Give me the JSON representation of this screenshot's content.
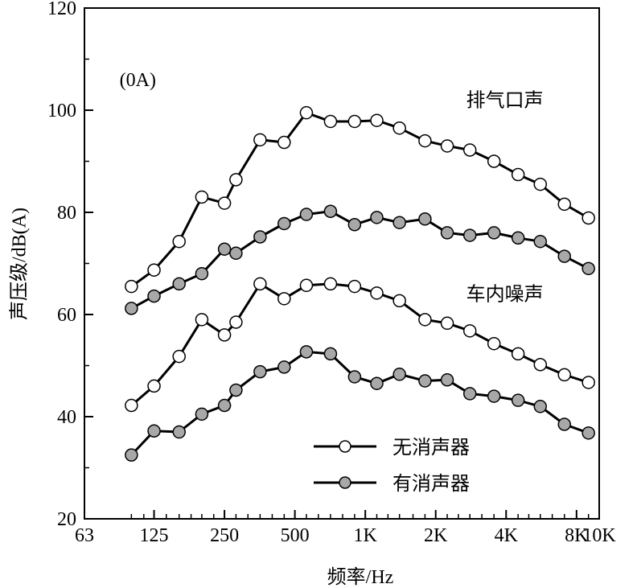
{
  "chart_data": {
    "type": "line",
    "xlabel": "频率/Hz",
    "ylabel": "声压级/dB(A)",
    "x_scale": "log",
    "xlim": [
      63,
      10000
    ],
    "ylim": [
      20,
      120
    ],
    "x_ticks": [
      {
        "label": "63",
        "value": 63
      },
      {
        "label": "125",
        "value": 125
      },
      {
        "label": "250",
        "value": 250
      },
      {
        "label": "500",
        "value": 500
      },
      {
        "label": "1K",
        "value": 1000
      },
      {
        "label": "2K",
        "value": 2000
      },
      {
        "label": "4K",
        "value": 4000
      },
      {
        "label": "8K",
        "value": 8000
      },
      {
        "label": "10K",
        "value": 10000
      }
    ],
    "y_ticks": [
      {
        "label": "20",
        "value": 20
      },
      {
        "label": "40",
        "value": 40
      },
      {
        "label": "60",
        "value": 60
      },
      {
        "label": "80",
        "value": 80
      },
      {
        "label": "100",
        "value": 100
      },
      {
        "label": "120",
        "value": 120
      }
    ],
    "x": [
      100,
      113,
      125,
      141,
      160,
      180,
      200,
      225,
      250,
      280,
      315,
      355,
      400,
      450,
      500,
      560,
      630,
      710,
      800,
      900,
      1000,
      1120,
      1250,
      1400,
      1600,
      1800,
      2000,
      2240,
      2500,
      2800,
      3150,
      3550,
      4000,
      4500,
      5000,
      5600,
      6300,
      7100,
      8000,
      9000,
      10000
    ],
    "annotations": [
      {
        "text": "(0A)",
        "x": 89,
        "y": 106
      },
      {
        "text": "排气口声",
        "x": 2700,
        "y": 102
      },
      {
        "text": "车内噪声",
        "x": 2700,
        "y": 64
      }
    ],
    "legend": {
      "placement": "bottom-right",
      "entries": [
        {
          "label": "无消声器",
          "marker": "open-circle"
        },
        {
          "label": "有消声器",
          "marker": "gray-circle"
        }
      ]
    },
    "colors": {
      "open_fill": "#ffffff",
      "filled_fill": "#a8a8a8",
      "line": "#000000"
    },
    "series": [
      {
        "group": "排气口声",
        "legend": "无消声器",
        "points": [
          [
            100,
            65.5
          ],
          [
            125,
            68.7
          ],
          [
            160,
            74.3
          ],
          [
            200,
            83
          ],
          [
            250,
            81.8
          ],
          [
            280,
            86.4
          ],
          [
            355,
            94.2
          ],
          [
            450,
            93.7
          ],
          [
            560,
            99.5
          ],
          [
            710,
            97.8
          ],
          [
            900,
            97.8
          ],
          [
            1120,
            98
          ],
          [
            1400,
            96.5
          ],
          [
            1800,
            94
          ],
          [
            2240,
            93
          ],
          [
            2800,
            92.2
          ],
          [
            3550,
            90
          ],
          [
            4500,
            87.4
          ],
          [
            5600,
            85.5
          ],
          [
            7100,
            81.6
          ],
          [
            9000,
            78.9
          ]
        ]
      },
      {
        "group": "排气口声",
        "legend": "有消声器",
        "points": [
          [
            100,
            61.2
          ],
          [
            125,
            63.6
          ],
          [
            160,
            66
          ],
          [
            200,
            68
          ],
          [
            250,
            72.8
          ],
          [
            280,
            72
          ],
          [
            355,
            75.2
          ],
          [
            450,
            77.8
          ],
          [
            560,
            79.6
          ],
          [
            710,
            80.2
          ],
          [
            900,
            77.6
          ],
          [
            1120,
            79
          ],
          [
            1400,
            78
          ],
          [
            1800,
            78.7
          ],
          [
            2240,
            76
          ],
          [
            2800,
            75.5
          ],
          [
            3550,
            76
          ],
          [
            4500,
            75
          ],
          [
            5600,
            74.3
          ],
          [
            7100,
            71.4
          ],
          [
            9000,
            69
          ]
        ]
      },
      {
        "group": "车内噪声",
        "legend": "无消声器",
        "points": [
          [
            100,
            42.2
          ],
          [
            125,
            46
          ],
          [
            160,
            51.8
          ],
          [
            200,
            59
          ],
          [
            250,
            56
          ],
          [
            280,
            58.5
          ],
          [
            355,
            66
          ],
          [
            450,
            63.1
          ],
          [
            560,
            65.7
          ],
          [
            710,
            66
          ],
          [
            900,
            65.5
          ],
          [
            1120,
            64.2
          ],
          [
            1400,
            62.7
          ],
          [
            1800,
            59
          ],
          [
            2240,
            58.3
          ],
          [
            2800,
            56.8
          ],
          [
            3550,
            54.3
          ],
          [
            4500,
            52.3
          ],
          [
            5600,
            50.2
          ],
          [
            7100,
            48.2
          ],
          [
            9000,
            46.7
          ]
        ]
      },
      {
        "group": "车内噪声",
        "legend": "有消声器",
        "points": [
          [
            100,
            32.5
          ],
          [
            125,
            37.2
          ],
          [
            160,
            37
          ],
          [
            200,
            40.5
          ],
          [
            250,
            42.2
          ],
          [
            280,
            45.2
          ],
          [
            355,
            48.8
          ],
          [
            450,
            49.7
          ],
          [
            560,
            52.7
          ],
          [
            710,
            52.3
          ],
          [
            900,
            47.8
          ],
          [
            1120,
            46.5
          ],
          [
            1400,
            48.3
          ],
          [
            1800,
            47
          ],
          [
            2240,
            47.2
          ],
          [
            2800,
            44.5
          ],
          [
            3550,
            44
          ],
          [
            4500,
            43.2
          ],
          [
            5600,
            42
          ],
          [
            7100,
            38.5
          ],
          [
            9000,
            36.8
          ]
        ]
      }
    ]
  }
}
